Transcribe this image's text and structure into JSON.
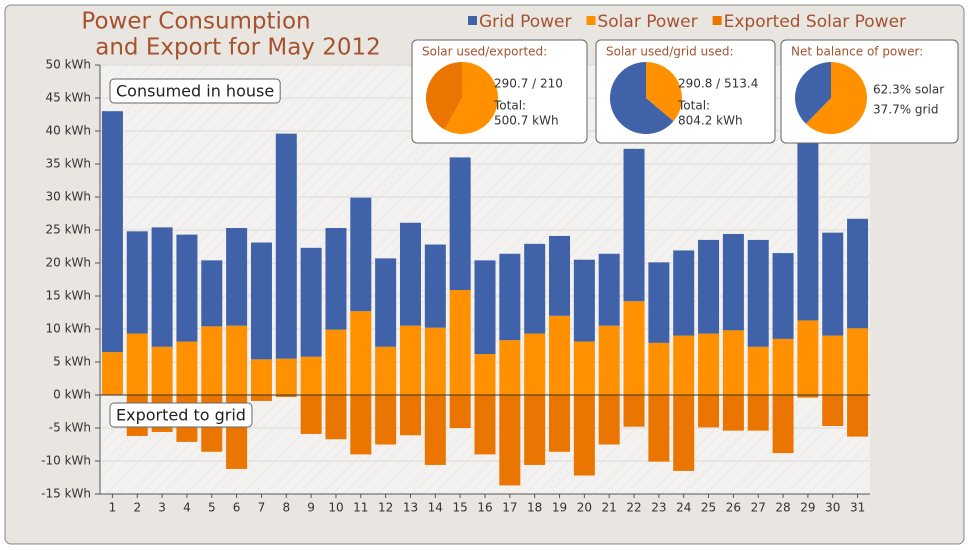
{
  "chart_data": [
    {
      "type": "bar",
      "title": [
        "Power Consumption",
        "and Export for May 2012"
      ],
      "categories": [
        "1",
        "2",
        "3",
        "4",
        "5",
        "6",
        "7",
        "8",
        "9",
        "10",
        "11",
        "12",
        "13",
        "14",
        "15",
        "16",
        "17",
        "18",
        "19",
        "20",
        "21",
        "22",
        "23",
        "24",
        "25",
        "26",
        "27",
        "28",
        "29",
        "30",
        "31"
      ],
      "series": [
        {
          "name": "Grid Power",
          "color": "#3f62a9",
          "values": [
            36.5,
            15.5,
            18.1,
            16.2,
            10.0,
            14.8,
            17.7,
            34.1,
            16.5,
            15.4,
            17.2,
            13.4,
            15.6,
            12.6,
            20.1,
            14.2,
            13.1,
            13.6,
            12.1,
            12.4,
            10.9,
            23.1,
            12.2,
            12.9,
            14.2,
            14.6,
            16.2,
            13.0,
            27.0,
            15.6,
            16.6
          ]
        },
        {
          "name": "Solar Power",
          "color": "#ff9100",
          "values": [
            6.5,
            9.3,
            7.3,
            8.1,
            10.4,
            10.5,
            5.4,
            5.5,
            5.8,
            9.9,
            12.7,
            7.3,
            10.5,
            10.2,
            15.9,
            6.2,
            8.3,
            9.3,
            12.0,
            8.1,
            10.5,
            14.2,
            7.9,
            9.0,
            9.3,
            9.8,
            7.3,
            8.5,
            11.3,
            9.0,
            10.1
          ]
        },
        {
          "name": "Exported Solar Power",
          "color": "#ea7500",
          "values": [
            0,
            -6.2,
            -5.6,
            -7.1,
            -8.6,
            -11.2,
            -0.9,
            -0.3,
            -5.9,
            -6.7,
            -9.0,
            -7.5,
            -6.1,
            -10.6,
            -5.0,
            -9.0,
            -13.7,
            -10.6,
            -8.6,
            -12.2,
            -7.5,
            -4.8,
            -10.1,
            -11.5,
            -4.9,
            -5.4,
            -5.4,
            -8.8,
            -0.4,
            -4.7,
            -6.3
          ]
        }
      ],
      "ylim": [
        -15,
        50
      ],
      "yticks": [
        {
          "value": -15,
          "label": "-15 kWh"
        },
        {
          "value": -10,
          "label": "-10 kWh"
        },
        {
          "value": -5,
          "label": "-5 kWh"
        },
        {
          "value": 0,
          "label": "0 kWh"
        },
        {
          "value": 5,
          "label": "5 kWh"
        },
        {
          "value": 10,
          "label": "10 kWh"
        },
        {
          "value": 15,
          "label": "15 kWh"
        },
        {
          "value": 20,
          "label": "20 kWh"
        },
        {
          "value": 25,
          "label": "25 kWh"
        },
        {
          "value": 30,
          "label": "30 kWh"
        },
        {
          "value": 35,
          "label": "35 kWh"
        },
        {
          "value": 40,
          "label": "40 kWh"
        },
        {
          "value": 45,
          "label": "45 kWh"
        },
        {
          "value": 50,
          "label": "50 kWh"
        }
      ],
      "annotations": [
        "Consumed in house",
        "Exported to grid"
      ],
      "grid": true
    },
    {
      "type": "pie",
      "title": "Solar used/exported:",
      "values": [
        290.7,
        210
      ],
      "colors": [
        "#ff9100",
        "#ea7500"
      ],
      "summary": "290.7 / 210",
      "total_label": "Total:",
      "total": "500.7 kWh"
    },
    {
      "type": "pie",
      "title": "Solar used/grid used:",
      "values": [
        290.8,
        513.4
      ],
      "colors": [
        "#ff9100",
        "#3f62a9"
      ],
      "summary": "290.8 / 513.4",
      "total_label": "Total:",
      "total": "804.2 kWh"
    },
    {
      "type": "pie",
      "title": "Net balance of power:",
      "values": [
        62.3,
        37.7
      ],
      "colors": [
        "#ff9100",
        "#3f62a9"
      ],
      "value_labels": [
        "62.3% solar",
        "37.7% grid"
      ]
    }
  ]
}
